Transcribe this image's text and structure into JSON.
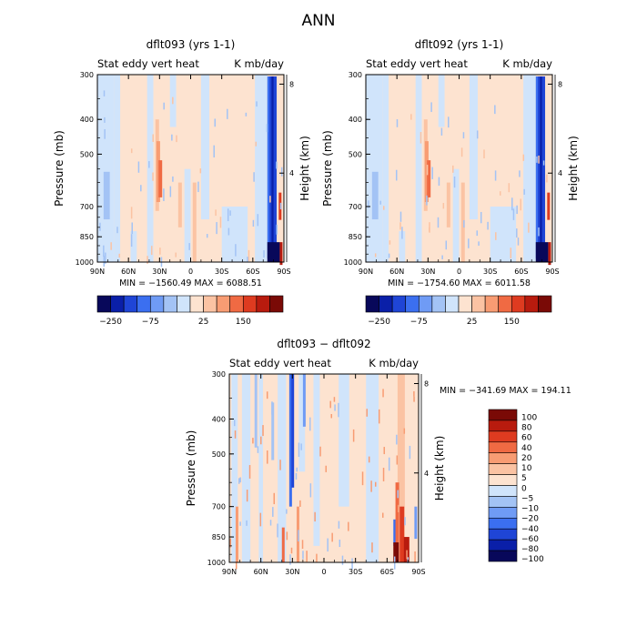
{
  "figure_title": "ANN",
  "colors": {
    "cold": [
      "#08085a",
      "#0a1fa8",
      "#1f45d6",
      "#3b6ff0",
      "#6f9bf5",
      "#a3c3f5",
      "#d0e4fb"
    ],
    "warm": [
      "#fde3d0",
      "#fbc3a3",
      "#f89c73",
      "#f06a43",
      "#de3b20",
      "#b81b0e",
      "#7a0a06"
    ],
    "background_cold": "#d0e4fb",
    "background_warm": "#fde3d0"
  },
  "chart_data": [
    {
      "type": "heatmap",
      "title": "dflt093 (yrs 1-1)",
      "subtitle_left": "Stat eddy vert heat",
      "subtitle_right": "K mb/day",
      "ylabel": "Pressure (mb)",
      "ylabel_right": "Height (km)",
      "xticks": [
        "90N",
        "60N",
        "30N",
        "0",
        "30S",
        "60S",
        "90S"
      ],
      "yticks": [
        "300",
        "400",
        "500",
        "700",
        "850",
        "1000"
      ],
      "ytick_values": [
        300,
        400,
        500,
        700,
        850,
        1000
      ],
      "yticks_right": [
        "8",
        "4"
      ],
      "ytick_right_values": [
        8,
        4
      ],
      "xlim": [
        90,
        -90
      ],
      "ylim": [
        1000,
        300
      ],
      "min_text": "MIN = −1560.49",
      "max_text": "MAX = 6088.51",
      "colorbar_labels": [
        "−250",
        "−75",
        "25",
        "150"
      ],
      "colorbar_levels": [
        "−250",
        "−200",
        "−150",
        "−100",
        "−75",
        "−50",
        "−25",
        "25",
        "50",
        "75",
        "100",
        "150",
        "200",
        "250"
      ]
    },
    {
      "type": "heatmap",
      "title": "dflt092 (yrs 1-1)",
      "subtitle_left": "Stat eddy vert heat",
      "subtitle_right": "K mb/day",
      "ylabel": "Pressure (mb)",
      "ylabel_right": "Height (km)",
      "xticks": [
        "90N",
        "60N",
        "30N",
        "0",
        "30S",
        "60S",
        "90S"
      ],
      "yticks": [
        "300",
        "400",
        "500",
        "700",
        "850",
        "1000"
      ],
      "ytick_values": [
        300,
        400,
        500,
        700,
        850,
        1000
      ],
      "yticks_right": [
        "8",
        "4"
      ],
      "ytick_right_values": [
        8,
        4
      ],
      "xlim": [
        90,
        -90
      ],
      "ylim": [
        1000,
        300
      ],
      "min_text": "MIN = −1754.60",
      "max_text": "MAX = 6011.58",
      "colorbar_labels": [
        "−250",
        "−75",
        "25",
        "150"
      ],
      "colorbar_levels": [
        "−250",
        "−200",
        "−150",
        "−100",
        "−75",
        "−50",
        "−25",
        "25",
        "50",
        "75",
        "100",
        "150",
        "200",
        "250"
      ]
    },
    {
      "type": "heatmap",
      "title": "dflt093 − dflt092",
      "subtitle_left": "Stat eddy vert heat",
      "subtitle_right": "K mb/day",
      "ylabel": "Pressure (mb)",
      "ylabel_right": "Height (km)",
      "xticks": [
        "90N",
        "60N",
        "30N",
        "0",
        "30S",
        "60S",
        "90S"
      ],
      "yticks": [
        "300",
        "400",
        "500",
        "700",
        "850",
        "1000"
      ],
      "ytick_values": [
        300,
        400,
        500,
        700,
        850,
        1000
      ],
      "yticks_right": [
        "8",
        "4"
      ],
      "ytick_right_values": [
        8,
        4
      ],
      "xlim": [
        90,
        -90
      ],
      "ylim": [
        1000,
        300
      ],
      "min_text": "MIN = −341.69",
      "max_text": "MAX = 194.11",
      "colorbar_labels": [
        "100",
        "80",
        "60",
        "40",
        "20",
        "10",
        "5",
        "0",
        "−5",
        "−10",
        "−20",
        "−40",
        "−60",
        "−80",
        "−100"
      ]
    }
  ]
}
